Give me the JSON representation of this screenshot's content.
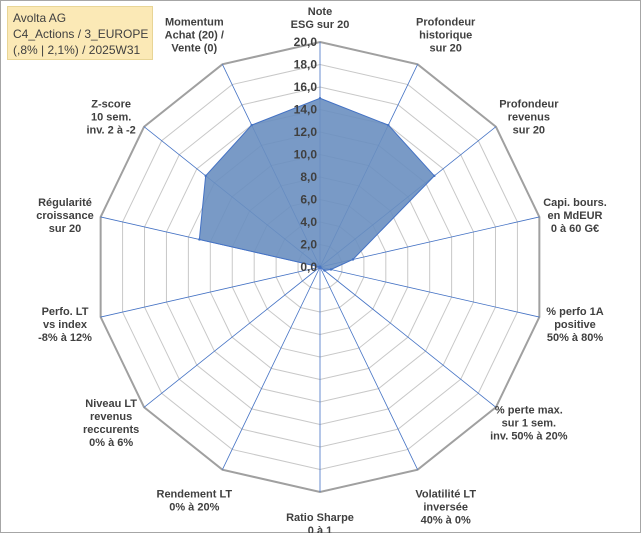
{
  "title_box": {
    "line1": "Avolta AG",
    "line2": "C4_Actions / 3_EUROPE",
    "line3": "(,8% | 2,1%) / 2025W31"
  },
  "chart_data": {
    "type": "radar",
    "title": "",
    "rmin": 0,
    "rmax": 20,
    "tick_step": 2,
    "tick_labels": [
      "0,0",
      "2,0",
      "4,0",
      "6,0",
      "8,0",
      "10,0",
      "12,0",
      "14,0",
      "16,0",
      "18,0",
      "20,0"
    ],
    "grid": true,
    "legend": "none",
    "fill_color": "#6a8fc0",
    "line_color": "#4472c4",
    "grid_color": "#c8c8c8",
    "spoke_color": "#4472c4",
    "categories": [
      [
        "Note",
        "ESG sur 20"
      ],
      [
        "Profondeur",
        "historique",
        "sur 20"
      ],
      [
        "Profondeur",
        "revenus",
        "sur 20"
      ],
      [
        "Capi. bours.",
        "en MdEUR",
        "0 à 60 G€"
      ],
      [
        "% perfo 1A",
        "positive",
        "50% à 80%"
      ],
      [
        "% perte max.",
        "sur 1 sem.",
        "inv. 50% à 20%"
      ],
      [
        "Volatilité LT",
        "inversée",
        "40% à 0%"
      ],
      [
        "Ratio Sharpe",
        "0 à 1"
      ],
      [
        "Rendement LT",
        "0% à 20%"
      ],
      [
        "Niveau LT",
        "revenus",
        "reccurents",
        "0% à 6%"
      ],
      [
        "Perfo. LT",
        "vs index",
        "-8% à 12%"
      ],
      [
        "Régularité",
        "croissance",
        "sur 20"
      ],
      [
        "Z-score",
        "10 sem.",
        "inv. 2 à -2"
      ],
      [
        "Momentum",
        "Achat (20) /",
        "Vente (0)"
      ]
    ],
    "series": [
      {
        "values": [
          15,
          14,
          13,
          3,
          1,
          0.5,
          0,
          0,
          0,
          0,
          0,
          11,
          13,
          14
        ]
      }
    ]
  }
}
